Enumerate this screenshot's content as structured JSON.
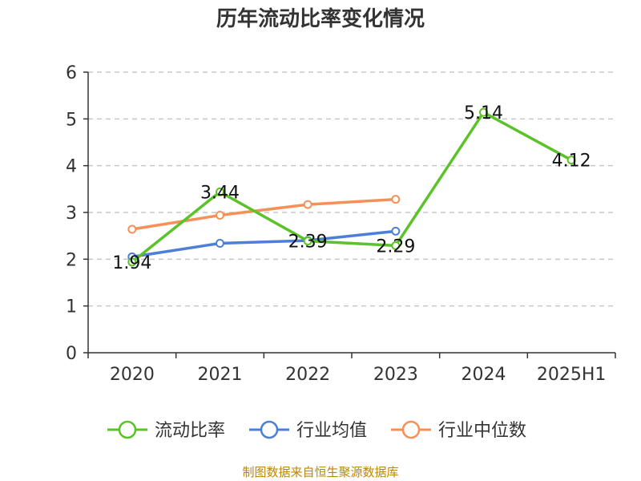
{
  "chart_data": {
    "type": "line",
    "title": "历年流动比率变化情况",
    "categories": [
      "2020",
      "2021",
      "2022",
      "2023",
      "2024",
      "2025H1"
    ],
    "ylim": [
      0,
      6
    ],
    "yticks": [
      "0",
      "1",
      "2",
      "3",
      "4",
      "5",
      "6"
    ],
    "grid": true,
    "legend_position": "bottom",
    "series": [
      {
        "name": "流动比率",
        "color": "#5cc22a",
        "values": [
          1.94,
          3.44,
          2.39,
          2.29,
          5.14,
          4.12
        ],
        "labels": [
          "1.94",
          "3.44",
          "2.39",
          "2.29",
          "5.14",
          "4.12"
        ]
      },
      {
        "name": "行业均值",
        "color": "#4e7fd8",
        "values": [
          2.05,
          2.34,
          2.4,
          2.6,
          null,
          null
        ]
      },
      {
        "name": "行业中位数",
        "color": "#f59158",
        "values": [
          2.64,
          2.94,
          3.17,
          3.28,
          null,
          null
        ]
      }
    ],
    "source": "制图数据来自恒生聚源数据库"
  }
}
